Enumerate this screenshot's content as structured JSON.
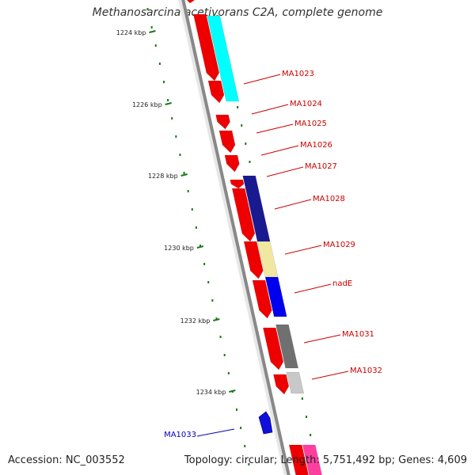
{
  "title": "Methanosarcina acetivorans C2A, complete genome",
  "footer": {
    "accession": "Accession: NC_003552",
    "summary": "Topology: circular; Length: 5,751,492 bp; Genes: 4,609"
  },
  "colors": {
    "backbone": "#888888",
    "tick": "#1a7a1a",
    "forward_label": "#cc0000",
    "reverse_label": "#0000bb",
    "cds": "#ee0000"
  },
  "kbp_marks": [
    {
      "label": "1224 kbp"
    },
    {
      "label": "1226 kbp"
    },
    {
      "label": "1228 kbp"
    },
    {
      "label": "1230 kbp"
    },
    {
      "label": "1232 kbp"
    },
    {
      "label": "1234 kbp"
    }
  ],
  "gene_labels": [
    {
      "text": "MA1023",
      "strand": "forward"
    },
    {
      "text": "MA1024",
      "strand": "forward"
    },
    {
      "text": "MA1025",
      "strand": "forward"
    },
    {
      "text": "MA1026",
      "strand": "forward"
    },
    {
      "text": "MA1027",
      "strand": "forward"
    },
    {
      "text": "MA1028",
      "strand": "forward"
    },
    {
      "text": "MA1029",
      "strand": "forward"
    },
    {
      "text": "nadE",
      "strand": "forward"
    },
    {
      "text": "MA1031",
      "strand": "forward"
    },
    {
      "text": "MA1032",
      "strand": "forward"
    },
    {
      "text": "MA1033",
      "strand": "reverse"
    }
  ]
}
